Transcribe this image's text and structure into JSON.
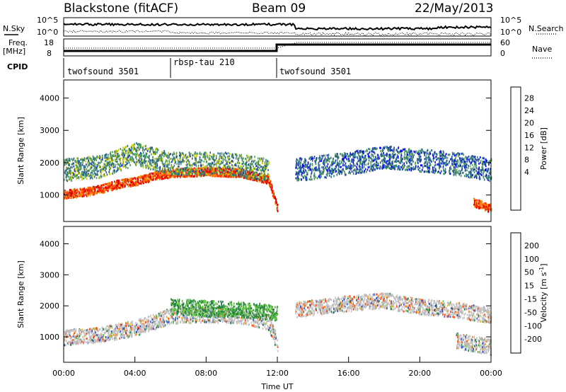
{
  "header": {
    "radar": "Blackstone (fitACF)",
    "beam": "Beam 09",
    "date": "22/May/2013"
  },
  "noise_panel": {
    "left_label": "N.Sky",
    "right_label": "N.Search",
    "ticks": [
      "10^5",
      "10^0"
    ]
  },
  "freq_panel": {
    "left_label_1": "Freq.",
    "left_label_2": "[MHz]",
    "right_label": "Nave",
    "left_ticks": [
      "18",
      "8"
    ],
    "right_ticks": [
      "60",
      "0"
    ]
  },
  "cpid_panel": {
    "label": "CPID",
    "programs": [
      {
        "name": "twofsound 3501",
        "start_hour": 0
      },
      {
        "name": "rbsp-tau 210",
        "start_hour": 6
      },
      {
        "name": "twofsound 3501",
        "start_hour": 12
      }
    ]
  },
  "chart_data": [
    {
      "type": "heatmap",
      "title": "",
      "ylabel": "Slant Range [km]",
      "xlabel": "",
      "xlim": [
        0,
        24
      ],
      "ylim": [
        180,
        4560
      ],
      "yticks": [
        1000,
        2000,
        3000,
        4000
      ],
      "colorbar": {
        "label": "Power [dB]",
        "ticks": [
          "28",
          "24",
          "20",
          "16",
          "12",
          "8",
          "4"
        ],
        "colors": [
          "#0000ff",
          "#1a3ab0",
          "#2a6a8a",
          "#3a8c6a",
          "#55a055",
          "#c8c800",
          "#f0a000",
          "#ff6000",
          "#ff2000",
          "#e00000"
        ]
      },
      "bands": [
        {
          "feature": "strong echo band",
          "hours": [
            0,
            1,
            2,
            3,
            4,
            5,
            6,
            8,
            10,
            11.5,
            12
          ],
          "range_km": [
            1050,
            1100,
            1200,
            1350,
            1450,
            1600,
            1700,
            1750,
            1700,
            1500,
            600
          ],
          "dB": 26
        },
        {
          "feature": "upper echo band",
          "hours": [
            0,
            2,
            4,
            6,
            9,
            11.5
          ],
          "range_km": [
            1800,
            1900,
            2300,
            2000,
            2000,
            1800
          ],
          "dB": 12
        },
        {
          "feature": "scattered echoes",
          "hours": [
            13,
            16,
            18,
            20,
            22,
            24
          ],
          "range_km": [
            1800,
            2000,
            2200,
            2100,
            2000,
            1800
          ],
          "dB": 8
        },
        {
          "feature": "late strong echoes",
          "hours": [
            23,
            24
          ],
          "range_km": [
            800,
            600
          ],
          "dB": 26
        }
      ]
    },
    {
      "type": "heatmap",
      "title": "",
      "ylabel": "Slant Range [km]",
      "xlabel": "Time UT",
      "xlim": [
        0,
        24
      ],
      "ylim": [
        180,
        4560
      ],
      "xticks": [
        "00:00",
        "04:00",
        "08:00",
        "12:00",
        "16:00",
        "20:00",
        "00:00"
      ],
      "yticks": [
        1000,
        2000,
        3000,
        4000
      ],
      "colorbar": {
        "label": "Velocity [m s^-1]",
        "ticks": [
          "200",
          "100",
          "50",
          "15",
          "-15",
          "-50",
          "-100",
          "-200"
        ],
        "colors": [
          "#1a1aa0",
          "#2a4ac0",
          "#208040",
          "#60c040",
          "#c0c0c0",
          "#f0c030",
          "#ff8000",
          "#ff4000",
          "#e00000"
        ]
      },
      "bands": [
        {
          "feature": "ground scatter (grey)",
          "hours": [
            0,
            2,
            4,
            6,
            8,
            10,
            11.5,
            12
          ],
          "range_km": [
            1000,
            1100,
            1300,
            1700,
            1750,
            1700,
            1500,
            800
          ],
          "velocity": 0
        },
        {
          "feature": "green band",
          "hours": [
            6,
            8,
            10,
            12
          ],
          "range_km": [
            2000,
            1950,
            1900,
            1800
          ],
          "velocity": 50
        },
        {
          "feature": "mixed scatter",
          "hours": [
            13,
            16,
            18,
            20,
            22,
            24
          ],
          "range_km": [
            1900,
            2100,
            2200,
            2000,
            1900,
            1700
          ],
          "velocity": 0
        },
        {
          "feature": "late grey scatter",
          "hours": [
            22,
            24
          ],
          "range_km": [
            900,
            700
          ],
          "velocity": 0
        }
      ]
    }
  ],
  "colors": {
    "frame": "#000000",
    "grey_scatter": "#c0c0c0"
  }
}
